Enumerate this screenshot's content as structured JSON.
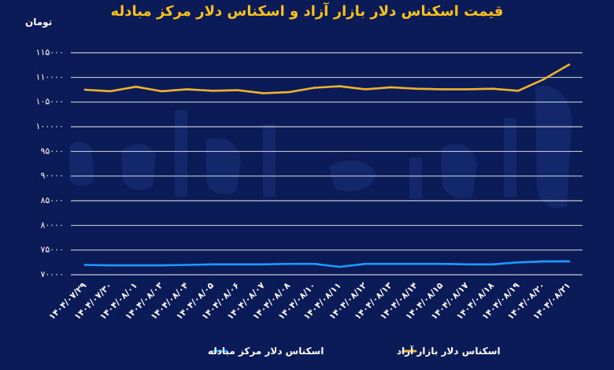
{
  "header": {
    "title": "قیمت اسکناس دلار بازار آزاد و اسکناس دلار مرکز مبادله",
    "unit": "تومان"
  },
  "colors": {
    "background": "#0b1b57",
    "title": "#ffc21a",
    "open_market": "#f2b22e",
    "exchange_center": "#1e9bff",
    "grid": "#ffffff",
    "watermark": "#2a4aa0"
  },
  "chart_data": {
    "type": "line",
    "categories": [
      "۱۴۰۴/۰۷/۲۹",
      "۱۴۰۴/۰۷/۳۰",
      "۱۴۰۴/۰۸/۰۱",
      "۱۴۰۴/۰۸/۰۳",
      "۱۴۰۴/۰۸/۰۴",
      "۱۴۰۴/۰۸/۰۵",
      "۱۴۰۴/۰۸/۰۶",
      "۱۴۰۴/۰۸/۰۷",
      "۱۴۰۴/۰۸/۰۸",
      "۱۴۰۴/۰۸/۱۰",
      "۱۴۰۴/۰۸/۱۱",
      "۱۴۰۴/۰۸/۱۲",
      "۱۴۰۴/۰۸/۱۳",
      "۱۴۰۴/۰۸/۱۴",
      "۱۴۰۴/۰۸/۱۵",
      "۱۴۰۴/۰۸/۱۷",
      "۱۴۰۴/۰۸/۱۸",
      "۱۴۰۴/۰۸/۱۹",
      "۱۴۰۴/۰۸/۲۰",
      "۱۴۰۴/۰۸/۲۱"
    ],
    "series": [
      {
        "name": "اسکناس دلار بازار آزاد",
        "color": "#f2b22e",
        "values": [
          107500,
          107200,
          108100,
          107200,
          107600,
          107300,
          107400,
          106800,
          107000,
          107900,
          108200,
          107600,
          108000,
          107700,
          107600,
          107600,
          107700,
          107300,
          109600,
          112600
        ]
      },
      {
        "name": "اسکناس دلار مرکز مبادله",
        "color": "#1e9bff",
        "values": [
          72000,
          71900,
          71900,
          71900,
          72000,
          72100,
          72100,
          72100,
          72200,
          72200,
          71600,
          72200,
          72200,
          72200,
          72200,
          72100,
          72100,
          72500,
          72700,
          72700
        ]
      }
    ],
    "yticks": [
      "۷۰۰۰۰",
      "۷۵۰۰۰",
      "۸۰۰۰۰",
      "۸۵۰۰۰",
      "۹۰۰۰۰",
      "۹۵۰۰۰",
      "۱۰۰۰۰۰",
      "۱۰۵۰۰۰",
      "۱۱۰۰۰۰",
      "۱۱۵۰۰۰"
    ],
    "ylim": [
      70000,
      115000
    ],
    "grid": true,
    "legend": "bottom"
  }
}
